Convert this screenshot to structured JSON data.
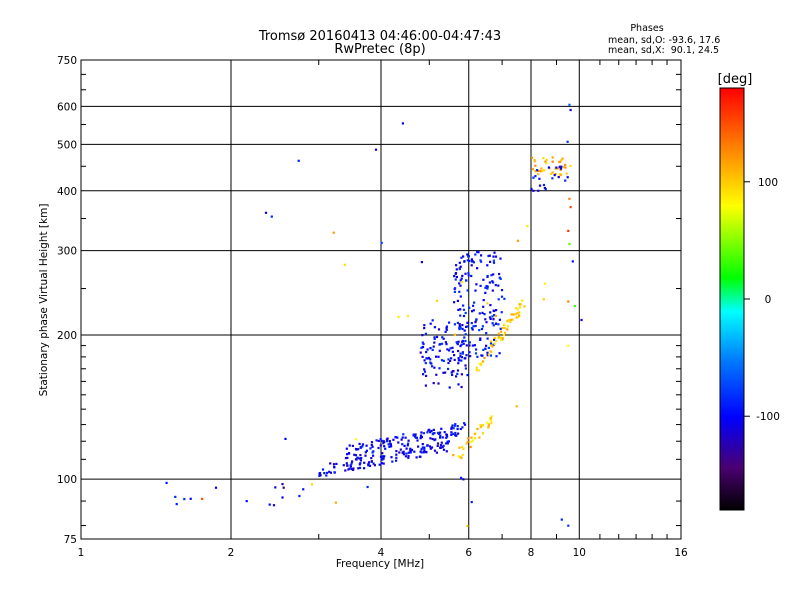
{
  "chart_data": {
    "type": "scatter",
    "title": "Tromsø 20160413 04:46:00-04:47:43",
    "subtitle": "RwPretec (8p)",
    "xlabel": "Frequency [MHz]",
    "ylabel": "Stationary phase Virtual Height [km]",
    "x_scale": "log",
    "y_scale": "log",
    "xlim": [
      1,
      16
    ],
    "ylim": [
      75,
      750
    ],
    "x_ticks": [
      {
        "value": 1,
        "label": "1"
      },
      {
        "value": 2,
        "label": "2"
      },
      {
        "value": 4,
        "label": "4"
      },
      {
        "value": 6,
        "label": "6"
      },
      {
        "value": 8,
        "label": "8"
      },
      {
        "value": 10,
        "label": "10"
      },
      {
        "value": 16,
        "label": "16"
      }
    ],
    "y_ticks": [
      {
        "value": 75,
        "label": "75"
      },
      {
        "value": 100,
        "label": "100"
      },
      {
        "value": 200,
        "label": "200"
      },
      {
        "value": 300,
        "label": "300"
      },
      {
        "value": 400,
        "label": "400"
      },
      {
        "value": 500,
        "label": "500"
      },
      {
        "value": 600,
        "label": "600"
      },
      {
        "value": 750,
        "label": "750"
      }
    ],
    "grid": true,
    "phase_stats": {
      "heading": "Phases",
      "line_o": "mean, sd,O: -93.6, 17.6",
      "line_x": "mean, sd,X:  90.1, 24.5"
    },
    "colorbar": {
      "label": "[deg]",
      "range": [
        -180,
        180
      ],
      "ticks": [
        {
          "value": 100,
          "label": "100"
        },
        {
          "value": 0,
          "label": "0"
        },
        {
          "value": -100,
          "label": "-100"
        }
      ]
    },
    "point_clusters": [
      {
        "name": "o-low-scattered",
        "phase": -100,
        "n": 14,
        "x": [
          1.3,
          2.8
        ],
        "y": [
          86,
          100
        ]
      },
      {
        "name": "o-e-layer-trace-1",
        "phase": -105,
        "n": 130,
        "x": [
          3.0,
          5.5
        ],
        "y": [
          104,
          118
        ]
      },
      {
        "name": "o-e-layer-trace-2",
        "phase": -100,
        "n": 120,
        "x": [
          3.4,
          5.9
        ],
        "y": [
          114,
          128
        ]
      },
      {
        "name": "o-f-lower",
        "phase": -100,
        "n": 110,
        "x": [
          4.8,
          6.0
        ],
        "y": [
          155,
          215
        ]
      },
      {
        "name": "o-f-upper",
        "phase": -95,
        "n": 180,
        "x": [
          5.6,
          7.0
        ],
        "y": [
          180,
          300
        ]
      },
      {
        "name": "x-e-trace",
        "phase": 100,
        "n": 35,
        "x": [
          5.7,
          6.7
        ],
        "y": [
          112,
          135
        ]
      },
      {
        "name": "x-f-trace",
        "phase": 100,
        "n": 55,
        "x": [
          6.2,
          7.8
        ],
        "y": [
          170,
          235
        ]
      },
      {
        "name": "x-high-scattered",
        "phase": 100,
        "n": 20,
        "x": [
          2.9,
          9.7
        ],
        "y": [
          78,
          420
        ]
      },
      {
        "name": "top-band-1",
        "phase": 110,
        "n": 40,
        "x": [
          8.0,
          9.6
        ],
        "y": [
          430,
          470
        ]
      },
      {
        "name": "top-band-2",
        "phase": -100,
        "n": 20,
        "x": [
          8.0,
          9.6
        ],
        "y": [
          400,
          450
        ]
      },
      {
        "name": "misc-outliers",
        "phase": -100,
        "n": 14,
        "x": [
          2.3,
          10.2
        ],
        "y": [
          80,
          610
        ]
      }
    ],
    "points": [
      {
        "x": 2.35,
        "y": 360,
        "phase": -105
      },
      {
        "x": 9.55,
        "y": 605,
        "phase": -60
      },
      {
        "x": 9.6,
        "y": 590,
        "phase": -110
      },
      {
        "x": 9.5,
        "y": 80,
        "phase": -80
      },
      {
        "x": 10.1,
        "y": 215,
        "phase": -110
      },
      {
        "x": 9.7,
        "y": 285,
        "phase": -95
      },
      {
        "x": 5.85,
        "y": 100,
        "phase": -110
      },
      {
        "x": 9.5,
        "y": 330,
        "phase": 160
      },
      {
        "x": 9.55,
        "y": 385,
        "phase": 130
      },
      {
        "x": 9.6,
        "y": 370,
        "phase": 150
      },
      {
        "x": 9.5,
        "y": 235,
        "phase": 130
      },
      {
        "x": 9.8,
        "y": 230,
        "phase": 30
      },
      {
        "x": 9.55,
        "y": 310,
        "phase": 40
      },
      {
        "x": 9.5,
        "y": 190,
        "phase": 80
      },
      {
        "x": 1.75,
        "y": 91,
        "phase": 150
      },
      {
        "x": 2.55,
        "y": 96,
        "phase": -150
      }
    ]
  }
}
